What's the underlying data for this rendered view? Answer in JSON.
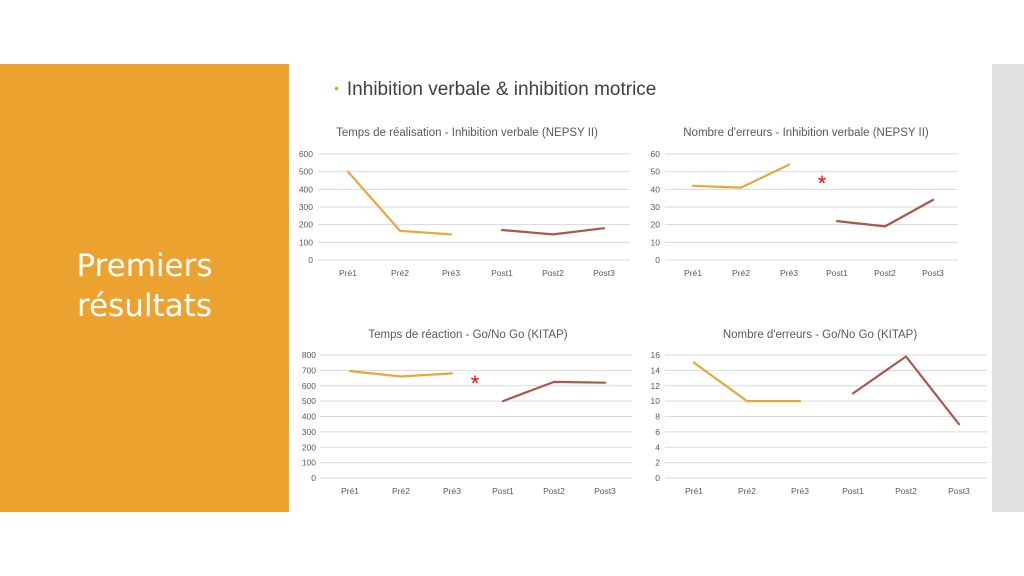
{
  "sidebar": {
    "title_line1": "Premiers",
    "title_line2": "résultats"
  },
  "bullet": {
    "text": "Inhibition verbale & inhibition motrice"
  },
  "colors": {
    "sidebar": "#eca22e",
    "pre": "#e8a838",
    "post": "#a9594a",
    "star": "#ff0000"
  },
  "chart_data": [
    {
      "type": "line",
      "title": "Temps de réalisation - Inhibition verbale (NEPSY II)",
      "categories": [
        "Pré1",
        "Pré2",
        "Pré3",
        "Post1",
        "Post2",
        "Post3"
      ],
      "ylim": [
        0,
        600
      ],
      "yticks": [
        "0",
        "100",
        "200",
        "300",
        "400",
        "500",
        "600"
      ],
      "series": [
        {
          "values": [
            500,
            165,
            145,
            null,
            null,
            null
          ]
        },
        {
          "values": [
            null,
            null,
            null,
            170,
            145,
            180
          ]
        }
      ],
      "star": null
    },
    {
      "type": "line",
      "title": "Nombre d'erreurs - Inhibition verbale (NEPSY II)",
      "categories": [
        "Pré1",
        "Pré2",
        "Pré3",
        "Post1",
        "Post2",
        "Post3"
      ],
      "ylim": [
        0,
        60
      ],
      "yticks": [
        "0",
        "10",
        "20",
        "30",
        "40",
        "50",
        "60"
      ],
      "series": [
        {
          "values": [
            42,
            41,
            54,
            null,
            null,
            null
          ]
        },
        {
          "values": [
            null,
            null,
            null,
            22,
            19,
            34
          ]
        }
      ],
      "star": "*"
    },
    {
      "type": "line",
      "title": "Temps de réaction - Go/No Go (KITAP)",
      "categories": [
        "Pré1",
        "Pré2",
        "Pré3",
        "Post1",
        "Post2",
        "Post3"
      ],
      "ylim": [
        0,
        800
      ],
      "yticks": [
        "0",
        "100",
        "200",
        "300",
        "400",
        "500",
        "600",
        "700",
        "800"
      ],
      "series": [
        {
          "values": [
            695,
            660,
            680,
            null,
            null,
            null
          ]
        },
        {
          "values": [
            null,
            null,
            null,
            500,
            625,
            620
          ]
        }
      ],
      "star": "*"
    },
    {
      "type": "line",
      "title": "Nombre d'erreurs - Go/No Go (KITAP)",
      "categories": [
        "Pré1",
        "Pré2",
        "Pré3",
        "Post1",
        "Post2",
        "Post3"
      ],
      "ylim": [
        0,
        16
      ],
      "yticks": [
        "0",
        "2",
        "4",
        "6",
        "8",
        "10",
        "12",
        "14",
        "16"
      ],
      "series": [
        {
          "values": [
            15,
            10,
            10,
            null,
            null,
            null
          ]
        },
        {
          "values": [
            null,
            null,
            null,
            11,
            15.8,
            7
          ]
        }
      ],
      "star": null
    }
  ]
}
